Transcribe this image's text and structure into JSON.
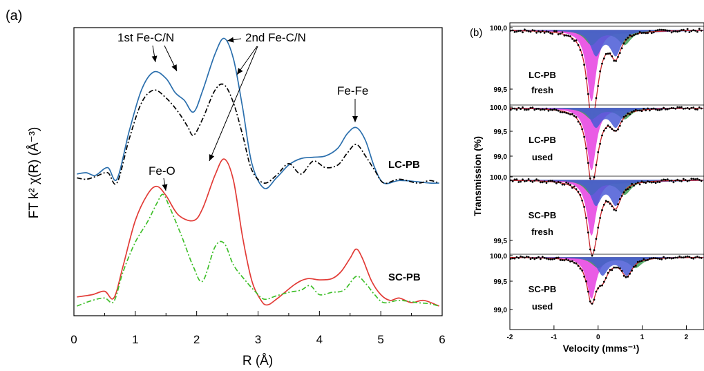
{
  "panel_a": {
    "tag": "(a)",
    "x_label": "R (Å)",
    "y_label": "FT k² χ(R) (Å⁻³)",
    "annotations": [
      "1st Fe-C/N",
      "2nd Fe-C/N",
      "Fe-Fe",
      "Fe-O"
    ],
    "sample_labels": [
      "LC-PB",
      "SC-PB"
    ]
  },
  "panel_b": {
    "tag": "(b)",
    "x_label": "Velocity (mms⁻¹)",
    "y_label": "Transmission (%)",
    "spectra": [
      {
        "label_line1": "LC-PB",
        "label_line2": "fresh",
        "y_ticks": [
          "100,0",
          "99,5"
        ]
      },
      {
        "label_line1": "LC-PB",
        "label_line2": "used",
        "y_ticks": [
          "100,0",
          "99,5",
          "99,0"
        ]
      },
      {
        "label_line1": "SC-PB",
        "label_line2": "fresh",
        "y_ticks": [
          "100,0",
          "99,5"
        ]
      },
      {
        "label_line1": "SC-PB",
        "label_line2": "used",
        "y_ticks": [
          "100,0",
          "99,5",
          "99,0"
        ]
      }
    ]
  },
  "chart_data": [
    {
      "type": "line",
      "panel": "(a)",
      "title": "",
      "xlabel": "R (Å)",
      "ylabel": "FT k² χ(R) (Å⁻³)",
      "xlim": [
        0,
        6
      ],
      "x_ticks": [
        0,
        1,
        2,
        3,
        4,
        5,
        6
      ],
      "y_ticks_shown": false,
      "grid": false,
      "series": [
        {
          "group": "LC-PB",
          "style": "solid",
          "color": "#2b6fad",
          "points": [
            [
              0.05,
              0.07
            ],
            [
              0.2,
              0.08
            ],
            [
              0.35,
              0.06
            ],
            [
              0.55,
              0.12
            ],
            [
              0.7,
              0.03
            ],
            [
              0.9,
              0.4
            ],
            [
              1.1,
              0.72
            ],
            [
              1.3,
              0.86
            ],
            [
              1.5,
              0.81
            ],
            [
              1.65,
              0.7
            ],
            [
              1.8,
              0.64
            ],
            [
              1.95,
              0.55
            ],
            [
              2.1,
              0.72
            ],
            [
              2.3,
              1.0
            ],
            [
              2.45,
              1.12
            ],
            [
              2.6,
              0.96
            ],
            [
              2.75,
              0.58
            ],
            [
              2.9,
              0.15
            ],
            [
              3.1,
              -0.04
            ],
            [
              3.3,
              0.04
            ],
            [
              3.5,
              0.14
            ],
            [
              3.7,
              0.19
            ],
            [
              3.9,
              0.2
            ],
            [
              4.1,
              0.21
            ],
            [
              4.3,
              0.27
            ],
            [
              4.45,
              0.38
            ],
            [
              4.6,
              0.43
            ],
            [
              4.75,
              0.33
            ],
            [
              4.9,
              0.12
            ],
            [
              5.05,
              0.0
            ],
            [
              5.3,
              0.02
            ],
            [
              5.6,
              0.01
            ],
            [
              5.8,
              0.0
            ],
            [
              5.95,
              0.0
            ]
          ]
        },
        {
          "group": "LC-PB",
          "style": "dash-dot",
          "color": "#000000",
          "points": [
            [
              0.05,
              0.04
            ],
            [
              0.2,
              0.03
            ],
            [
              0.35,
              0.05
            ],
            [
              0.55,
              0.08
            ],
            [
              0.7,
              0.0
            ],
            [
              0.9,
              0.34
            ],
            [
              1.1,
              0.62
            ],
            [
              1.3,
              0.72
            ],
            [
              1.5,
              0.66
            ],
            [
              1.7,
              0.55
            ],
            [
              1.85,
              0.44
            ],
            [
              1.95,
              0.37
            ],
            [
              2.1,
              0.5
            ],
            [
              2.3,
              0.72
            ],
            [
              2.45,
              0.76
            ],
            [
              2.6,
              0.62
            ],
            [
              2.75,
              0.37
            ],
            [
              2.9,
              0.1
            ],
            [
              3.1,
              0.0
            ],
            [
              3.3,
              0.06
            ],
            [
              3.5,
              0.15
            ],
            [
              3.7,
              0.07
            ],
            [
              3.9,
              0.17
            ],
            [
              4.1,
              0.12
            ],
            [
              4.3,
              0.14
            ],
            [
              4.45,
              0.23
            ],
            [
              4.6,
              0.3
            ],
            [
              4.75,
              0.21
            ],
            [
              4.9,
              0.1
            ],
            [
              5.05,
              0.0
            ],
            [
              5.3,
              0.03
            ],
            [
              5.6,
              0.0
            ],
            [
              5.8,
              0.02
            ],
            [
              5.95,
              0.0
            ]
          ]
        },
        {
          "group": "SC-PB",
          "style": "solid",
          "color": "#e23b36",
          "points": [
            [
              0.05,
              0.08
            ],
            [
              0.3,
              0.1
            ],
            [
              0.5,
              0.13
            ],
            [
              0.65,
              0.07
            ],
            [
              0.8,
              0.35
            ],
            [
              1.0,
              0.75
            ],
            [
              1.2,
              0.98
            ],
            [
              1.35,
              1.05
            ],
            [
              1.5,
              0.97
            ],
            [
              1.7,
              0.8
            ],
            [
              1.95,
              0.75
            ],
            [
              2.1,
              0.86
            ],
            [
              2.3,
              1.15
            ],
            [
              2.45,
              1.29
            ],
            [
              2.6,
              1.1
            ],
            [
              2.75,
              0.6
            ],
            [
              2.9,
              0.22
            ],
            [
              3.05,
              0.05
            ],
            [
              3.15,
              0.01
            ],
            [
              3.3,
              0.06
            ],
            [
              3.6,
              0.19
            ],
            [
              3.8,
              0.24
            ],
            [
              4.0,
              0.23
            ],
            [
              4.2,
              0.24
            ],
            [
              4.35,
              0.3
            ],
            [
              4.5,
              0.42
            ],
            [
              4.6,
              0.5
            ],
            [
              4.7,
              0.42
            ],
            [
              4.85,
              0.22
            ],
            [
              5.0,
              0.1
            ],
            [
              5.15,
              0.05
            ],
            [
              5.3,
              0.07
            ],
            [
              5.5,
              0.03
            ],
            [
              5.7,
              0.05
            ],
            [
              5.95,
              0.0
            ]
          ]
        },
        {
          "group": "SC-PB",
          "style": "dash-dot",
          "color": "#3fbf2a",
          "points": [
            [
              0.05,
              0.0
            ],
            [
              0.3,
              0.05
            ],
            [
              0.5,
              0.07
            ],
            [
              0.65,
              0.04
            ],
            [
              0.8,
              0.3
            ],
            [
              1.0,
              0.56
            ],
            [
              1.2,
              0.74
            ],
            [
              1.35,
              0.9
            ],
            [
              1.45,
              0.98
            ],
            [
              1.55,
              0.88
            ],
            [
              1.75,
              0.62
            ],
            [
              1.95,
              0.34
            ],
            [
              2.1,
              0.22
            ],
            [
              2.3,
              0.52
            ],
            [
              2.45,
              0.55
            ],
            [
              2.6,
              0.36
            ],
            [
              2.8,
              0.22
            ],
            [
              2.95,
              0.13
            ],
            [
              3.1,
              0.06
            ],
            [
              3.3,
              0.09
            ],
            [
              3.5,
              0.12
            ],
            [
              3.7,
              0.14
            ],
            [
              3.85,
              0.18
            ],
            [
              4.0,
              0.1
            ],
            [
              4.2,
              0.12
            ],
            [
              4.4,
              0.14
            ],
            [
              4.6,
              0.26
            ],
            [
              4.75,
              0.2
            ],
            [
              4.9,
              0.1
            ],
            [
              5.05,
              0.03
            ],
            [
              5.3,
              0.05
            ],
            [
              5.6,
              0.03
            ],
            [
              5.8,
              0.02
            ],
            [
              5.95,
              0.0
            ]
          ]
        }
      ]
    },
    {
      "type": "scatter",
      "panel": "(b)",
      "title": "",
      "xlabel": "Velocity (mms⁻¹)",
      "ylabel": "Transmission (%)",
      "xlim": [
        -2,
        2.4
      ],
      "x_ticks": [
        -2,
        -1,
        0,
        1,
        2
      ],
      "colors": {
        "singlet": "#e640e0",
        "doublet_blue": "#4a5bd6",
        "doublet_green": "#3f9e54",
        "fit": "#c8252b",
        "data": "#000000"
      },
      "spectra": [
        {
          "name": "LC-PB fresh",
          "ylim": [
            99.0,
            100.05
          ],
          "singlet": {
            "center": -0.15,
            "depth": 0.95
          },
          "doublet": {
            "centers": [
              -0.05,
              0.4
            ],
            "depth": 0.32
          },
          "minimum": 99.05
        },
        {
          "name": "LC-PB used",
          "ylim": [
            98.8,
            100.05
          ],
          "singlet": {
            "center": -0.15,
            "depth": 1.1
          },
          "doublet": {
            "centers": [
              -0.05,
              0.4
            ],
            "depth": 0.32
          },
          "minimum": 98.9
        },
        {
          "name": "SC-PB fresh",
          "ylim": [
            99.0,
            100.05
          ],
          "singlet": {
            "center": -0.15,
            "depth": 0.75
          },
          "doublet": {
            "centers": [
              -0.05,
              0.4
            ],
            "depth": 0.32
          },
          "minimum": 99.25
        },
        {
          "name": "SC-PB used",
          "ylim": [
            98.75,
            100.05
          ],
          "singlet": {
            "center": -0.15,
            "depth": 0.72
          },
          "doublet": {
            "centers": [
              0.1,
              0.65
            ],
            "depth": 0.3
          },
          "minimum": 99.28
        }
      ]
    }
  ]
}
